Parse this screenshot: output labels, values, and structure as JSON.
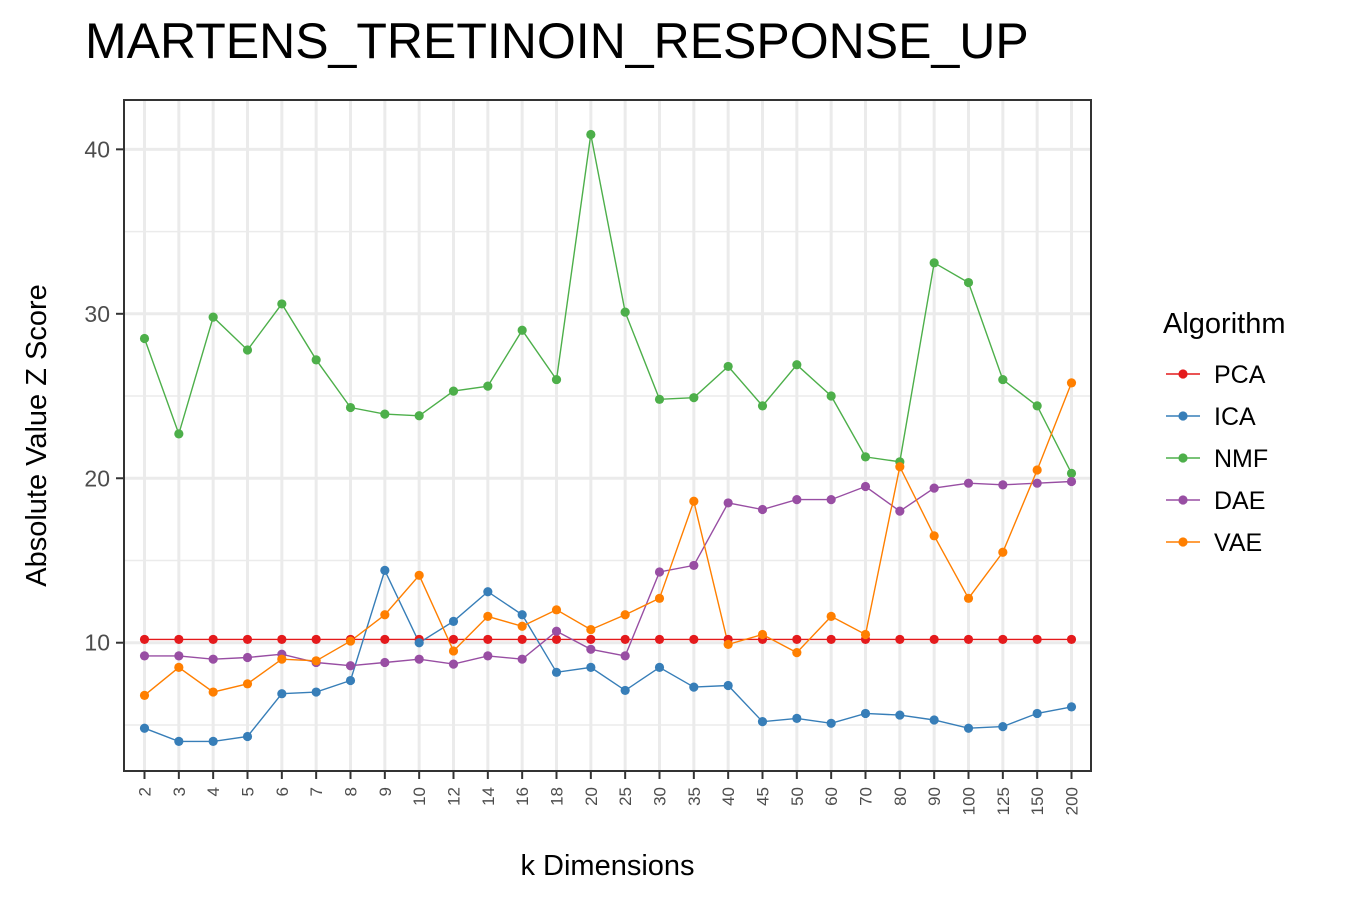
{
  "chart_data": {
    "type": "line",
    "title": "MARTENS_TRETINOIN_RESPONSE_UP",
    "xlabel": "k Dimensions",
    "ylabel": "Absolute Value Z Score",
    "x": [
      "2",
      "3",
      "4",
      "5",
      "6",
      "7",
      "8",
      "9",
      "10",
      "12",
      "14",
      "16",
      "18",
      "20",
      "25",
      "30",
      "35",
      "40",
      "45",
      "50",
      "60",
      "70",
      "80",
      "90",
      "100",
      "125",
      "150",
      "200"
    ],
    "ylim": [
      2.2,
      43
    ],
    "yticks": [
      10,
      20,
      30,
      40
    ],
    "grid": true,
    "legend_title": "Algorithm",
    "legend_position": "right",
    "series": [
      {
        "name": "PCA",
        "color": "#e41a1c",
        "values": [
          10.2,
          10.2,
          10.2,
          10.2,
          10.2,
          10.2,
          10.2,
          10.2,
          10.2,
          10.2,
          10.2,
          10.2,
          10.2,
          10.2,
          10.2,
          10.2,
          10.2,
          10.2,
          10.2,
          10.2,
          10.2,
          10.2,
          10.2,
          10.2,
          10.2,
          10.2,
          10.2,
          10.2
        ]
      },
      {
        "name": "ICA",
        "color": "#377eb8",
        "values": [
          4.8,
          4.0,
          4.0,
          4.3,
          6.9,
          7.0,
          7.7,
          14.4,
          10.0,
          11.3,
          13.1,
          11.7,
          8.2,
          8.5,
          7.1,
          8.5,
          7.3,
          7.4,
          5.2,
          5.4,
          5.1,
          5.7,
          5.6,
          5.3,
          4.8,
          4.9,
          5.7,
          6.1
        ]
      },
      {
        "name": "NMF",
        "color": "#4daf4a",
        "values": [
          28.5,
          22.7,
          29.8,
          27.8,
          30.6,
          27.2,
          24.3,
          23.9,
          23.8,
          25.3,
          25.6,
          29.0,
          26.0,
          40.9,
          30.1,
          24.8,
          24.9,
          26.8,
          24.4,
          26.9,
          25.0,
          21.3,
          21.0,
          33.1,
          31.9,
          26.0,
          24.4,
          20.3
        ]
      },
      {
        "name": "DAE",
        "color": "#984ea3",
        "values": [
          9.2,
          9.2,
          9.0,
          9.1,
          9.3,
          8.8,
          8.6,
          8.8,
          9.0,
          8.7,
          9.2,
          9.0,
          10.7,
          9.6,
          9.2,
          14.3,
          14.7,
          18.5,
          18.1,
          18.7,
          18.7,
          19.5,
          18.0,
          19.4,
          19.7,
          19.6,
          19.7,
          19.8
        ]
      },
      {
        "name": "VAE",
        "color": "#ff7f00",
        "values": [
          6.8,
          8.5,
          7.0,
          7.5,
          9.0,
          8.9,
          10.1,
          11.7,
          14.1,
          9.5,
          11.6,
          11.0,
          12.0,
          10.8,
          11.7,
          12.7,
          18.6,
          9.9,
          10.5,
          9.4,
          11.6,
          10.5,
          20.7,
          16.5,
          12.7,
          15.5,
          20.5,
          25.8
        ]
      }
    ]
  }
}
